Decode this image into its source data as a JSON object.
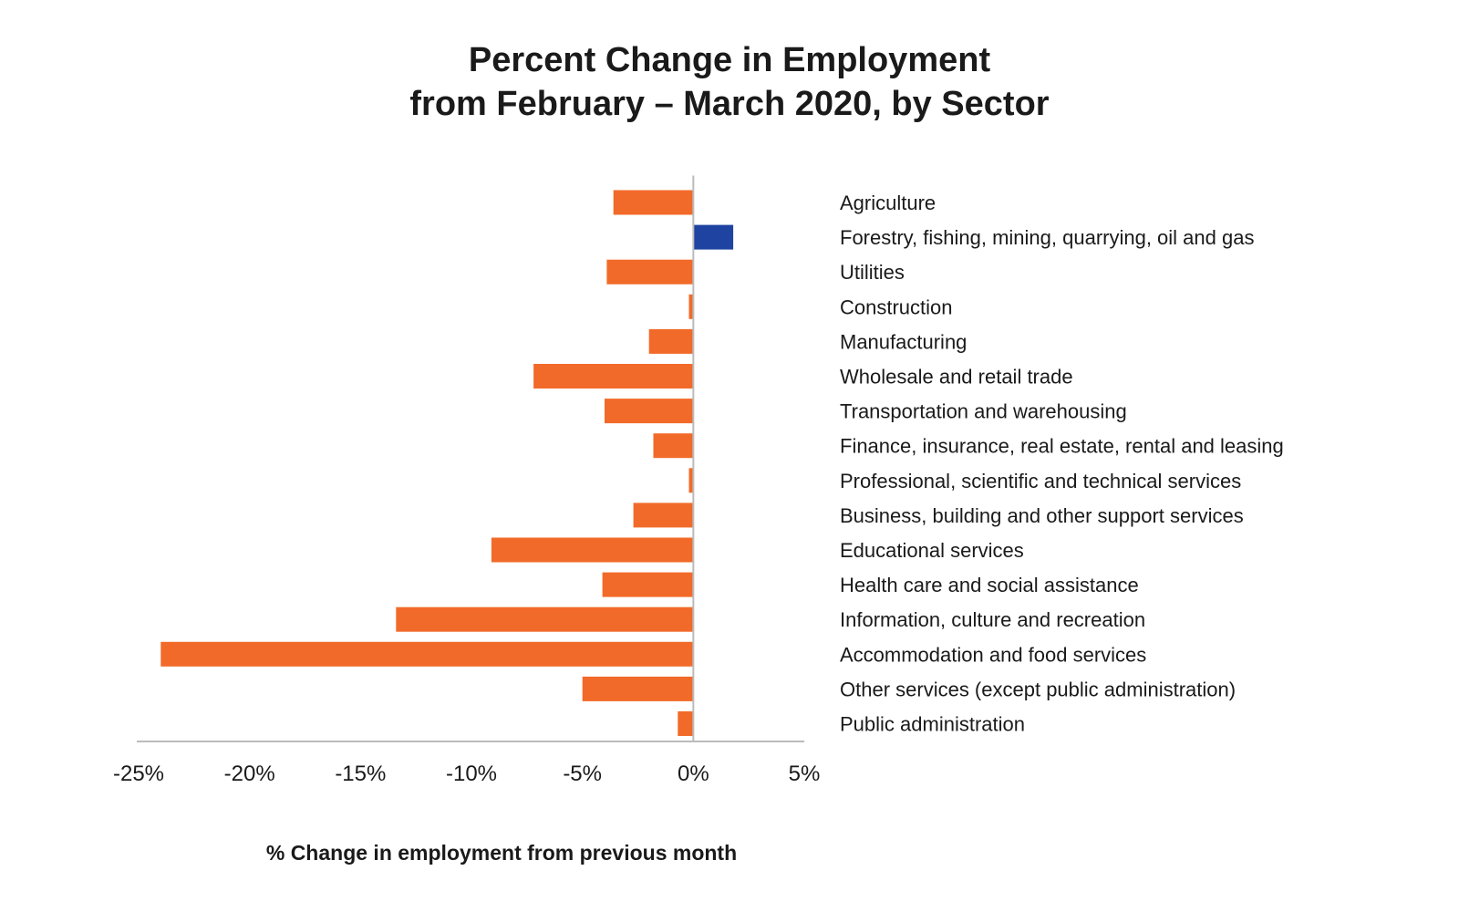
{
  "chart_data": {
    "type": "bar",
    "orientation": "horizontal",
    "title": "Percent Change in Employment",
    "subtitle": "from February – March 2020, by Sector",
    "xlabel": "% Change in employment from previous month",
    "ylabel": "",
    "xlim": [
      -25,
      5
    ],
    "ticks": [
      "-25%",
      "-20%",
      "-15%",
      "-10%",
      "-5%",
      "0%",
      "5%"
    ],
    "tick_values": [
      -25,
      -20,
      -15,
      -10,
      -5,
      0,
      5
    ],
    "grid": false,
    "legend": "none",
    "categories": [
      "Agriculture",
      "Forestry, fishing, mining, quarrying, oil and gas",
      "Utilities",
      "Construction",
      "Manufacturing",
      "Wholesale and retail trade",
      "Transportation and warehousing",
      "Finance, insurance, real estate, rental and leasing",
      "Professional, scientific and technical services",
      "Business, building and other support services",
      "Educational services",
      "Health care and social assistance",
      "Information, culture and recreation",
      "Accommodation and food services",
      "Other services (except public administration)",
      "Public administration"
    ],
    "values": [
      -3.6,
      1.8,
      -3.9,
      -0.2,
      -2.0,
      -7.2,
      -4.0,
      -1.8,
      -0.2,
      -2.7,
      -9.1,
      -4.1,
      -13.4,
      -24.0,
      -5.0,
      -0.7
    ],
    "colors": {
      "negative": "#f26a29",
      "positive": "#1f43a0",
      "axis": "#bbbbbb",
      "text": "#1a1a1a"
    }
  }
}
